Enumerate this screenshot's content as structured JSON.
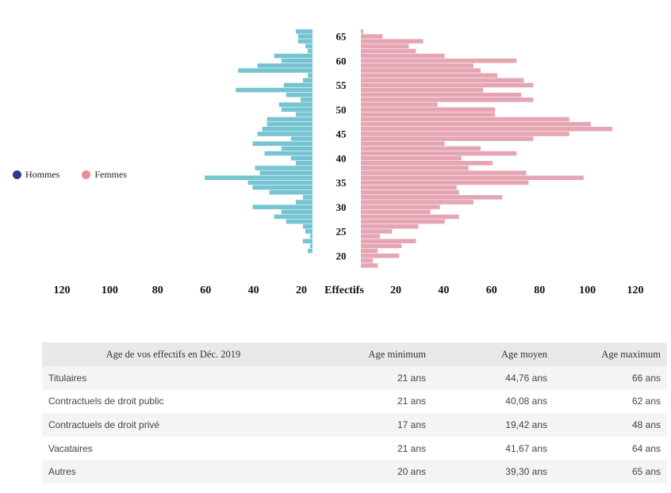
{
  "chart_data": {
    "type": "bar",
    "subtype": "population-pyramid",
    "y_axis_label": "Effectifs",
    "age_ticks": [
      "65",
      "60",
      "55",
      "50",
      "45",
      "40",
      "35",
      "30",
      "25",
      "20"
    ],
    "x_ticks_left": [
      "120",
      "100",
      "80",
      "60",
      "40",
      "20"
    ],
    "x_ticks_right": [
      "20",
      "40",
      "60",
      "80",
      "100",
      "120"
    ],
    "xlim": [
      0,
      120
    ],
    "series": [
      {
        "name": "Hommes",
        "color": "#75c4d1",
        "side": "left"
      },
      {
        "name": "Femmes",
        "color": "#e6a5b3",
        "side": "right"
      }
    ],
    "legend": {
      "position": "left",
      "items": [
        {
          "name": "Hommes",
          "color": "#2e3a87"
        },
        {
          "name": "Femmes",
          "color": "#ef8a98"
        }
      ]
    },
    "rows": [
      {
        "age": 66,
        "hommes": 7,
        "femmes": 1
      },
      {
        "age": 65,
        "hommes": 6,
        "femmes": 9
      },
      {
        "age": 64,
        "hommes": 6,
        "femmes": 26
      },
      {
        "age": 63,
        "hommes": 3,
        "femmes": 20
      },
      {
        "age": 62,
        "hommes": 2,
        "femmes": 23
      },
      {
        "age": 61,
        "hommes": 16,
        "femmes": 35
      },
      {
        "age": 60,
        "hommes": 13,
        "femmes": 65
      },
      {
        "age": 59,
        "hommes": 23,
        "femmes": 47
      },
      {
        "age": 58,
        "hommes": 31,
        "femmes": 50
      },
      {
        "age": 57,
        "hommes": 2,
        "femmes": 57
      },
      {
        "age": 56,
        "hommes": 4,
        "femmes": 68
      },
      {
        "age": 55,
        "hommes": 12,
        "femmes": 72
      },
      {
        "age": 54,
        "hommes": 32,
        "femmes": 51
      },
      {
        "age": 53,
        "hommes": 11,
        "femmes": 67
      },
      {
        "age": 52,
        "hommes": 5,
        "femmes": 72
      },
      {
        "age": 51,
        "hommes": 14,
        "femmes": 32
      },
      {
        "age": 50,
        "hommes": 13,
        "femmes": 56
      },
      {
        "age": 49,
        "hommes": 7,
        "femmes": 56
      },
      {
        "age": 48,
        "hommes": 19,
        "femmes": 87
      },
      {
        "age": 47,
        "hommes": 19,
        "femmes": 96
      },
      {
        "age": 46,
        "hommes": 21,
        "femmes": 105
      },
      {
        "age": 45,
        "hommes": 23,
        "femmes": 87
      },
      {
        "age": 44,
        "hommes": 9,
        "femmes": 72
      },
      {
        "age": 43,
        "hommes": 25,
        "femmes": 35
      },
      {
        "age": 42,
        "hommes": 13,
        "femmes": 50
      },
      {
        "age": 41,
        "hommes": 20,
        "femmes": 65
      },
      {
        "age": 40,
        "hommes": 9,
        "femmes": 42
      },
      {
        "age": 39,
        "hommes": 7,
        "femmes": 55
      },
      {
        "age": 38,
        "hommes": 24,
        "femmes": 45
      },
      {
        "age": 37,
        "hommes": 22,
        "femmes": 69
      },
      {
        "age": 36,
        "hommes": 45,
        "femmes": 93
      },
      {
        "age": 35,
        "hommes": 27,
        "femmes": 70
      },
      {
        "age": 34,
        "hommes": 25,
        "femmes": 40
      },
      {
        "age": 33,
        "hommes": 18,
        "femmes": 41
      },
      {
        "age": 32,
        "hommes": 4,
        "femmes": 59
      },
      {
        "age": 31,
        "hommes": 7,
        "femmes": 47
      },
      {
        "age": 30,
        "hommes": 25,
        "femmes": 33
      },
      {
        "age": 29,
        "hommes": 13,
        "femmes": 29
      },
      {
        "age": 28,
        "hommes": 16,
        "femmes": 41
      },
      {
        "age": 27,
        "hommes": 11,
        "femmes": 35
      },
      {
        "age": 26,
        "hommes": 4,
        "femmes": 24
      },
      {
        "age": 25,
        "hommes": 3,
        "femmes": 13
      },
      {
        "age": 24,
        "hommes": 1,
        "femmes": 8
      },
      {
        "age": 23,
        "hommes": 4,
        "femmes": 23
      },
      {
        "age": 22,
        "hommes": 1,
        "femmes": 17
      },
      {
        "age": 21,
        "hommes": 2,
        "femmes": 7
      },
      {
        "age": 20,
        "hommes": 0,
        "femmes": 16
      },
      {
        "age": 19,
        "hommes": 0,
        "femmes": 5
      },
      {
        "age": 18,
        "hommes": 0,
        "femmes": 7
      }
    ]
  },
  "table": {
    "headers": [
      "Age de vos effectifs en Déc. 2019",
      "Age minimum",
      "Age moyen",
      "Age maximum"
    ],
    "rows": [
      [
        "Titulaires",
        "21 ans",
        "44,76 ans",
        "66 ans"
      ],
      [
        "Contractuels de droit public",
        "21 ans",
        "40,08 ans",
        "62 ans"
      ],
      [
        "Contractuels de droit privé",
        "17 ans",
        "19,42 ans",
        "48 ans"
      ],
      [
        "Vacataires",
        "21 ans",
        "41,67 ans",
        "64 ans"
      ],
      [
        "Autres",
        "20 ans",
        "39,30 ans",
        "65 ans"
      ]
    ]
  }
}
